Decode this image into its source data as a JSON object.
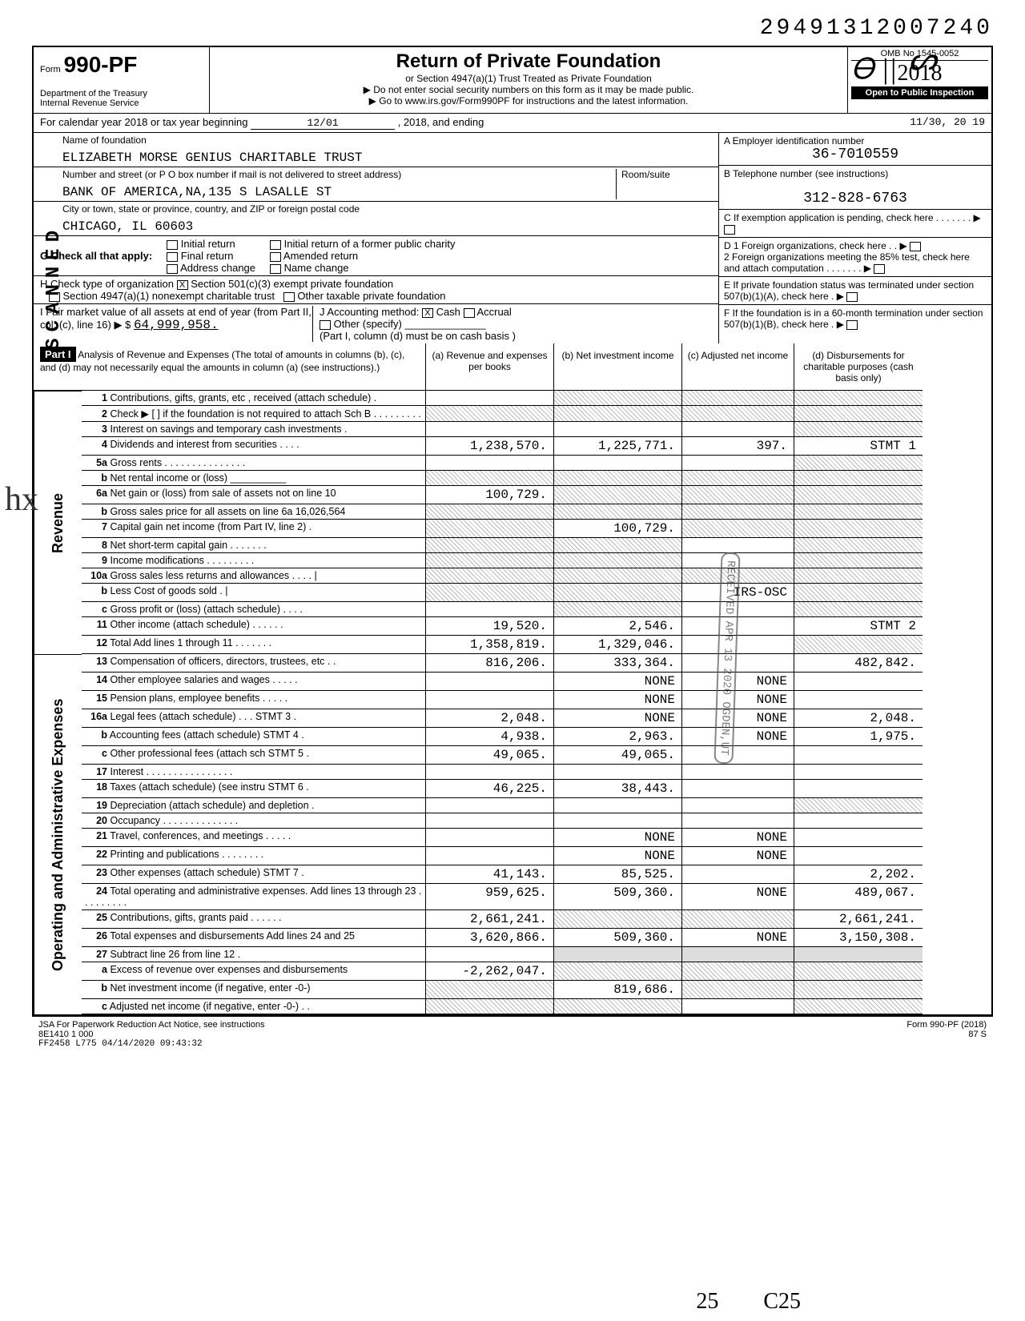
{
  "doc": {
    "top_number": "29491312007240",
    "form_no": "990-PF",
    "form_prefix": "Form",
    "dept": "Department of the Treasury",
    "irs": "Internal Revenue Service",
    "title": "Return of Private Foundation",
    "subtitle1": "or Section 4947(a)(1) Trust Treated as Private Foundation",
    "subtitle2": "▶ Do not enter social security numbers on this form as it may be made public.",
    "subtitle3": "▶ Go to www.irs.gov/Form990PF for instructions and the latest information.",
    "omb": "OMB No 1545-0052",
    "year": "2018",
    "inspection": "Open to Public Inspection",
    "calendar": "For calendar year 2018 or tax year beginning",
    "begin_date": "12/01",
    "begin_year": ", 2018, and ending",
    "end_date": "11/30, 20 19"
  },
  "entity": {
    "name_label": "Name of foundation",
    "name": "ELIZABETH MORSE GENIUS CHARITABLE TRUST",
    "addr_label": "Number and street (or P O box number if mail is not delivered to street address)",
    "room_label": "Room/suite",
    "addr": "BANK OF AMERICA,NA,135 S LASALLE ST",
    "city_label": "City or town, state or province, country, and ZIP or foreign postal code",
    "city": "CHICAGO, IL 60603",
    "ein_label": "A  Employer identification number",
    "ein": "36-7010559",
    "phone_label": "B  Telephone number (see instructions)",
    "phone": "312-828-6763",
    "c_label": "C  If exemption application is pending, check here . . . . . . . ▶",
    "d1": "D 1 Foreign organizations, check here . . ▶",
    "d2": "   2 Foreign organizations meeting the 85% test, check here and attach computation . . . . . . . ▶",
    "e_label": "E  If private foundation status was terminated under section 507(b)(1)(A), check here . ▶",
    "f_label": "F  If the foundation is in a 60-month termination under section 507(b)(1)(B), check here . ▶"
  },
  "g": {
    "label": "G Check all that apply:",
    "opts": [
      "Initial return",
      "Final return",
      "Address change",
      "Initial return of a former public charity",
      "Amended return",
      "Name change"
    ]
  },
  "h": {
    "label": "H  Check type of organization",
    "opt1": "Section 501(c)(3) exempt private foundation",
    "opt2": "Section 4947(a)(1) nonexempt charitable trust",
    "opt3": "Other taxable private foundation"
  },
  "i": {
    "label": "I  Fair market value of all assets at end of year (from Part II, col. (c), line 16) ▶ $",
    "value": "64,999,958.",
    "j_label": "J Accounting method:",
    "j_cash": "Cash",
    "j_accrual": "Accrual",
    "j_other": "Other (specify)",
    "j_note": "(Part I, column (d) must be on cash basis )"
  },
  "part1": {
    "heading": "Part I",
    "title": "Analysis of Revenue and Expenses (The total of amounts in columns (b), (c), and (d) may not necessarily equal the amounts in column (a) (see instructions).)",
    "col_a": "(a) Revenue and expenses per books",
    "col_b": "(b) Net investment income",
    "col_c": "(c) Adjusted net income",
    "col_d": "(d) Disbursements for charitable purposes (cash basis only)"
  },
  "rows": [
    {
      "n": "1",
      "d": "Contributions, gifts, grants, etc , received (attach schedule) .",
      "a": "",
      "b": "shade",
      "c": "shade",
      "dd": "shade"
    },
    {
      "n": "2",
      "d": "Check ▶ [ ] if the foundation is not required to attach Sch B . . . . . . . . .",
      "a": "shade",
      "b": "shade",
      "c": "shade",
      "dd": "shade"
    },
    {
      "n": "3",
      "d": "Interest on savings and temporary cash investments .",
      "a": "",
      "b": "",
      "c": "",
      "dd": "shade"
    },
    {
      "n": "4",
      "d": "Dividends and interest from securities . . . .",
      "a": "1,238,570.",
      "b": "1,225,771.",
      "c": "397.",
      "dd": "STMT 1"
    },
    {
      "n": "5a",
      "d": "Gross rents . . . . . . . . . . . . . . .",
      "a": "",
      "b": "",
      "c": "",
      "dd": "shade"
    },
    {
      "n": "b",
      "d": "Net rental income or (loss) __________",
      "a": "shade",
      "b": "shade",
      "c": "shade",
      "dd": "shade"
    },
    {
      "n": "6a",
      "d": "Net gain or (loss) from sale of assets not on line 10",
      "a": "100,729.",
      "b": "shade",
      "c": "shade",
      "dd": "shade"
    },
    {
      "n": "b",
      "d": "Gross sales price for all assets on line 6a   16,026,564",
      "a": "shade",
      "b": "shade",
      "c": "shade",
      "dd": "shade"
    },
    {
      "n": "7",
      "d": "Capital gain net income (from Part IV, line 2) .",
      "a": "shade",
      "b": "100,729.",
      "c": "shade",
      "dd": "shade"
    },
    {
      "n": "8",
      "d": "Net short-term capital gain . . . . . . .",
      "a": "shade",
      "b": "shade",
      "c": "",
      "dd": "shade"
    },
    {
      "n": "9",
      "d": "Income modifications . . . . . . . . .",
      "a": "shade",
      "b": "shade",
      "c": "",
      "dd": "shade"
    },
    {
      "n": "10a",
      "d": "Gross sales less returns and allowances . . . . |",
      "a": "shade",
      "b": "shade",
      "c": "shade",
      "dd": "shade"
    },
    {
      "n": "b",
      "d": "Less Cost of goods sold .  |",
      "a": "shade",
      "b": "shade",
      "c": "IRS-OSC",
      "dd": "shade"
    },
    {
      "n": "c",
      "d": "Gross profit or (loss) (attach schedule) . . . .",
      "a": "",
      "b": "shade",
      "c": "",
      "dd": "shade"
    },
    {
      "n": "11",
      "d": "Other income (attach schedule) . . . . . .",
      "a": "19,520.",
      "b": "2,546.",
      "c": "",
      "dd": "STMT 2"
    },
    {
      "n": "12",
      "d": "Total Add lines 1 through 11 . . . . . . .",
      "a": "1,358,819.",
      "b": "1,329,046.",
      "c": "",
      "dd": "shade"
    },
    {
      "n": "13",
      "d": "Compensation of officers, directors, trustees, etc . .",
      "a": "816,206.",
      "b": "333,364.",
      "c": "",
      "dd": "482,842."
    },
    {
      "n": "14",
      "d": "Other employee salaries and wages . . . . .",
      "a": "",
      "b": "NONE",
      "c": "NONE",
      "dd": ""
    },
    {
      "n": "15",
      "d": "Pension plans, employee benefits . . . . .",
      "a": "",
      "b": "NONE",
      "c": "NONE",
      "dd": ""
    },
    {
      "n": "16a",
      "d": "Legal fees (attach schedule) . . . STMT 3 .",
      "a": "2,048.",
      "b": "NONE",
      "c": "NONE",
      "dd": "2,048."
    },
    {
      "n": "b",
      "d": "Accounting fees (attach schedule) STMT 4 .",
      "a": "4,938.",
      "b": "2,963.",
      "c": "NONE",
      "dd": "1,975."
    },
    {
      "n": "c",
      "d": "Other professional fees (attach sch STMT 5 .",
      "a": "49,065.",
      "b": "49,065.",
      "c": "",
      "dd": ""
    },
    {
      "n": "17",
      "d": "Interest . . . . . . . . . . . . . . . .",
      "a": "",
      "b": "",
      "c": "",
      "dd": ""
    },
    {
      "n": "18",
      "d": "Taxes (attach schedule) (see instru STMT 6 .",
      "a": "46,225.",
      "b": "38,443.",
      "c": "",
      "dd": ""
    },
    {
      "n": "19",
      "d": "Depreciation (attach schedule) and depletion .",
      "a": "",
      "b": "",
      "c": "",
      "dd": "shade"
    },
    {
      "n": "20",
      "d": "Occupancy . . . . . . . . . . . . . .",
      "a": "",
      "b": "",
      "c": "",
      "dd": ""
    },
    {
      "n": "21",
      "d": "Travel, conferences, and meetings . . . . .",
      "a": "",
      "b": "NONE",
      "c": "NONE",
      "dd": ""
    },
    {
      "n": "22",
      "d": "Printing and publications . . . . . . . .",
      "a": "",
      "b": "NONE",
      "c": "NONE",
      "dd": ""
    },
    {
      "n": "23",
      "d": "Other expenses (attach schedule) STMT 7 .",
      "a": "41,143.",
      "b": "85,525.",
      "c": "",
      "dd": "2,202."
    },
    {
      "n": "24",
      "d": "Total operating and administrative expenses. Add lines 13 through 23 . . . . . . . . .",
      "a": "959,625.",
      "b": "509,360.",
      "c": "NONE",
      "dd": "489,067."
    },
    {
      "n": "25",
      "d": "Contributions, gifts, grants paid . . . . . .",
      "a": "2,661,241.",
      "b": "shade",
      "c": "shade",
      "dd": "2,661,241."
    },
    {
      "n": "26",
      "d": "Total expenses and disbursements Add lines 24 and 25",
      "a": "3,620,866.",
      "b": "509,360.",
      "c": "NONE",
      "dd": "3,150,308."
    },
    {
      "n": "27",
      "d": "Subtract line 26 from line 12 .",
      "a": "",
      "b": "grey",
      "c": "grey",
      "dd": "grey"
    },
    {
      "n": "a",
      "d": "Excess of revenue over expenses and disbursements",
      "a": "-2,262,047.",
      "b": "shade",
      "c": "shade",
      "dd": "shade"
    },
    {
      "n": "b",
      "d": "Net investment income (if negative, enter -0-)",
      "a": "shade",
      "b": "819,686.",
      "c": "shade",
      "dd": "shade"
    },
    {
      "n": "c",
      "d": "Adjusted net income (if negative, enter -0-) . .",
      "a": "shade",
      "b": "shade",
      "c": "",
      "dd": "shade"
    }
  ],
  "side": {
    "revenue": "Revenue",
    "expenses": "Operating and Administrative Expenses"
  },
  "footer": {
    "jsa": "JSA For Paperwork Reduction Act Notice, see instructions",
    "code": "8E1410 1 000",
    "batch": "FF2458 L775 04/14/2020 09:43:32",
    "right": "Form 990-PF (2018)",
    "page": "87    S"
  },
  "stamp": "RECEIVED  APR 13 2020  OGDEN,UT",
  "initials": "hx",
  "scanned": "SCANNED",
  "hand25": "25",
  "handC25": "C25"
}
